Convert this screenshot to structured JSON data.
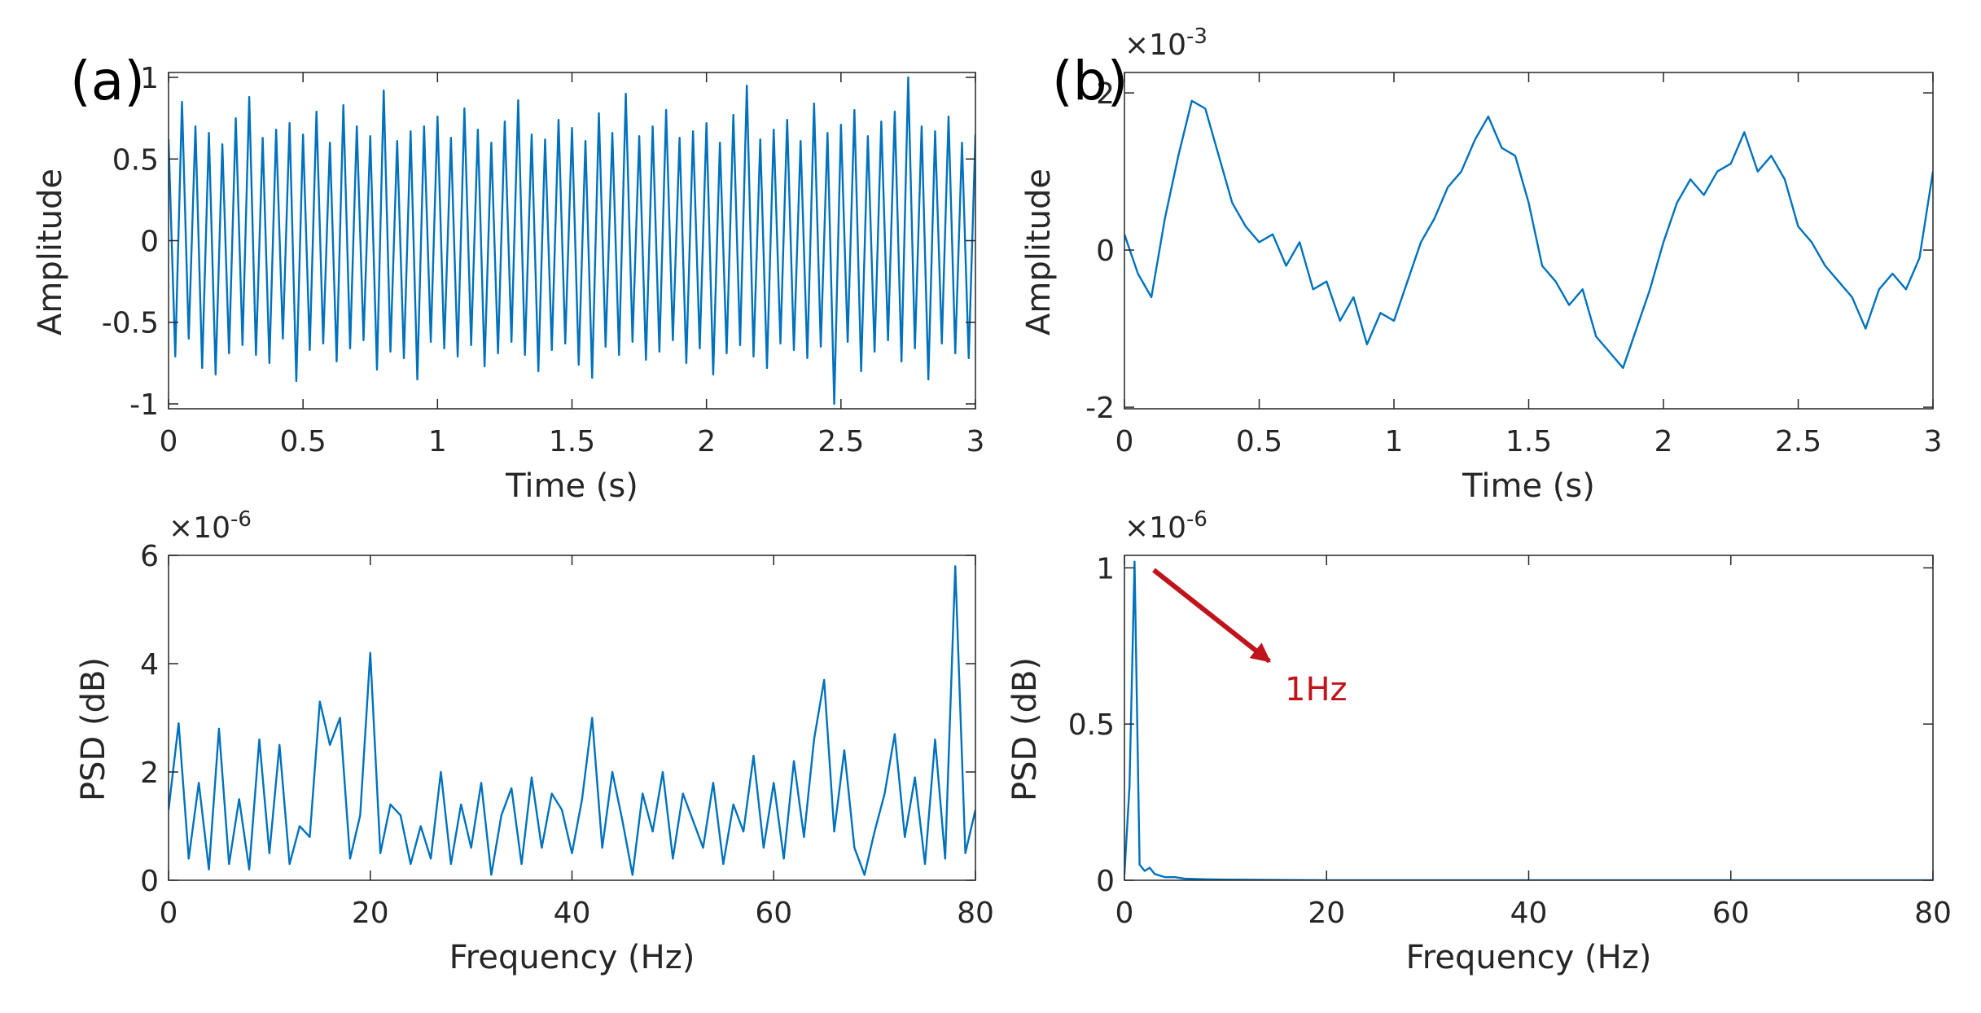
{
  "chart_data": [
    {
      "type": "line",
      "panel_label": "(a)",
      "xlabel": "Time (s)",
      "ylabel": "Amplitude",
      "xlim": [
        0,
        3
      ],
      "ylim": [
        -1.03,
        1.03
      ],
      "xticks": [
        0,
        0.5,
        1,
        1.5,
        2,
        2.5,
        3
      ],
      "yticks": [
        -1,
        -0.5,
        0,
        0.5,
        1
      ],
      "x": [
        0,
        0.025,
        0.05,
        0.075,
        0.1,
        0.125,
        0.15,
        0.175,
        0.2,
        0.225,
        0.25,
        0.275,
        0.3,
        0.325,
        0.35,
        0.375,
        0.4,
        0.425,
        0.45,
        0.475,
        0.5,
        0.525,
        0.55,
        0.575,
        0.6,
        0.625,
        0.65,
        0.675,
        0.7,
        0.725,
        0.75,
        0.775,
        0.8,
        0.825,
        0.85,
        0.875,
        0.9,
        0.925,
        0.95,
        0.975,
        1,
        1.025,
        1.05,
        1.075,
        1.1,
        1.125,
        1.15,
        1.175,
        1.2,
        1.225,
        1.25,
        1.275,
        1.3,
        1.325,
        1.35,
        1.375,
        1.4,
        1.425,
        1.45,
        1.475,
        1.5,
        1.525,
        1.55,
        1.575,
        1.6,
        1.625,
        1.65,
        1.675,
        1.7,
        1.725,
        1.75,
        1.775,
        1.8,
        1.825,
        1.85,
        1.875,
        1.9,
        1.925,
        1.95,
        1.975,
        2,
        2.025,
        2.05,
        2.075,
        2.1,
        2.125,
        2.15,
        2.175,
        2.2,
        2.225,
        2.25,
        2.275,
        2.3,
        2.325,
        2.35,
        2.375,
        2.4,
        2.425,
        2.45,
        2.475,
        2.5,
        2.525,
        2.55,
        2.575,
        2.6,
        2.625,
        2.65,
        2.675,
        2.7,
        2.725,
        2.75,
        2.775,
        2.8,
        2.825,
        2.85,
        2.875,
        2.9,
        2.925,
        2.95,
        2.975,
        3
      ],
      "series": [
        {
          "color": "#0072bd",
          "values": [
            0.62,
            -0.71,
            0.85,
            -0.6,
            0.7,
            -0.78,
            0.66,
            -0.82,
            0.59,
            -0.69,
            0.75,
            -0.64,
            0.88,
            -0.7,
            0.63,
            -0.75,
            0.68,
            -0.6,
            0.72,
            -0.86,
            0.65,
            -0.67,
            0.79,
            -0.63,
            0.6,
            -0.74,
            0.83,
            -0.66,
            0.7,
            -0.61,
            0.64,
            -0.79,
            0.92,
            -0.68,
            0.61,
            -0.72,
            0.67,
            -0.85,
            0.7,
            -0.62,
            0.76,
            -0.66,
            0.63,
            -0.71,
            0.81,
            -0.64,
            0.68,
            -0.77,
            0.6,
            -0.69,
            0.73,
            -0.62,
            0.86,
            -0.7,
            0.65,
            -0.8,
            0.62,
            -0.67,
            0.74,
            -0.63,
            0.69,
            -0.76,
            0.61,
            -0.84,
            0.78,
            -0.65,
            0.66,
            -0.7,
            0.9,
            -0.62,
            0.64,
            -0.73,
            0.7,
            -0.68,
            0.8,
            -0.61,
            0.63,
            -0.75,
            0.67,
            -0.66,
            0.72,
            -0.82,
            0.6,
            -0.69,
            0.77,
            -0.64,
            0.95,
            -0.71,
            0.62,
            -0.78,
            0.68,
            -0.63,
            0.74,
            -0.67,
            0.61,
            -0.72,
            0.84,
            -0.65,
            0.66,
            -1.0,
            0.71,
            -0.62,
            0.8,
            -0.8,
            0.64,
            -0.68,
            0.73,
            -0.61,
            0.79,
            -0.74,
            1.0,
            -0.66,
            0.7,
            -0.85,
            0.67,
            -0.63,
            0.76,
            -0.69,
            0.6,
            -0.72,
            0.65
          ]
        }
      ]
    },
    {
      "type": "line",
      "panel_label": "(b)",
      "xlabel": "Time (s)",
      "ylabel": "Amplitude",
      "exponent": {
        "base": "×10",
        "power": "-3"
      },
      "xlim": [
        0,
        3
      ],
      "ylim": [
        -2.02,
        2.26
      ],
      "xticks": [
        0,
        0.5,
        1,
        1.5,
        2,
        2.5,
        3
      ],
      "yticks": [
        -2,
        0,
        2
      ],
      "x": [
        0,
        0.05,
        0.1,
        0.15,
        0.2,
        0.25,
        0.3,
        0.35,
        0.4,
        0.45,
        0.5,
        0.55,
        0.6,
        0.65,
        0.7,
        0.75,
        0.8,
        0.85,
        0.9,
        0.95,
        1,
        1.05,
        1.1,
        1.15,
        1.2,
        1.25,
        1.3,
        1.35,
        1.4,
        1.45,
        1.5,
        1.55,
        1.6,
        1.65,
        1.7,
        1.75,
        1.8,
        1.85,
        1.9,
        1.95,
        2,
        2.05,
        2.1,
        2.15,
        2.2,
        2.25,
        2.3,
        2.35,
        2.4,
        2.45,
        2.5,
        2.55,
        2.6,
        2.65,
        2.7,
        2.75,
        2.8,
        2.85,
        2.9,
        2.95,
        3
      ],
      "series": [
        {
          "color": "#0072bd",
          "values": [
            0.2,
            -0.3,
            -0.6,
            0.4,
            1.2,
            1.9,
            1.8,
            1.2,
            0.6,
            0.3,
            0.1,
            0.2,
            -0.2,
            0.1,
            -0.5,
            -0.4,
            -0.9,
            -0.6,
            -1.2,
            -0.8,
            -0.9,
            -0.4,
            0.1,
            0.4,
            0.8,
            1.0,
            1.4,
            1.7,
            1.3,
            1.2,
            0.6,
            -0.2,
            -0.4,
            -0.7,
            -0.5,
            -1.1,
            -1.3,
            -1.5,
            -1.0,
            -0.5,
            0.1,
            0.6,
            0.9,
            0.7,
            1.0,
            1.1,
            1.5,
            1.0,
            1.2,
            0.9,
            0.3,
            0.1,
            -0.2,
            -0.4,
            -0.6,
            -1.0,
            -0.5,
            -0.3,
            -0.5,
            -0.1,
            1.0
          ]
        }
      ]
    },
    {
      "type": "line",
      "xlabel": "Frequency (Hz)",
      "ylabel": "PSD (dB)",
      "exponent": {
        "base": "×10",
        "power": "-6"
      },
      "xlim": [
        0,
        80
      ],
      "ylim": [
        0,
        6
      ],
      "xticks": [
        0,
        20,
        40,
        60,
        80
      ],
      "yticks": [
        0,
        2,
        4,
        6
      ],
      "x": [
        0,
        1,
        2,
        3,
        4,
        5,
        6,
        7,
        8,
        9,
        10,
        11,
        12,
        13,
        14,
        15,
        16,
        17,
        18,
        19,
        20,
        21,
        22,
        23,
        24,
        25,
        26,
        27,
        28,
        29,
        30,
        31,
        32,
        33,
        34,
        35,
        36,
        37,
        38,
        39,
        40,
        41,
        42,
        43,
        44,
        45,
        46,
        47,
        48,
        49,
        50,
        51,
        52,
        53,
        54,
        55,
        56,
        57,
        58,
        59,
        60,
        61,
        62,
        63,
        64,
        65,
        66,
        67,
        68,
        69,
        70,
        71,
        72,
        73,
        74,
        75,
        76,
        77,
        78,
        79,
        80
      ],
      "series": [
        {
          "color": "#0072bd",
          "values": [
            1.3,
            2.9,
            0.4,
            1.8,
            0.2,
            2.8,
            0.3,
            1.5,
            0.2,
            2.6,
            0.5,
            2.5,
            0.3,
            1.0,
            0.8,
            3.3,
            2.5,
            3.0,
            0.4,
            1.2,
            4.2,
            0.5,
            1.4,
            1.2,
            0.3,
            1.0,
            0.4,
            2.0,
            0.3,
            1.4,
            0.6,
            1.8,
            0.1,
            1.2,
            1.7,
            0.3,
            1.9,
            0.6,
            1.6,
            1.3,
            0.5,
            1.5,
            3.0,
            0.6,
            2.0,
            1.1,
            0.1,
            1.6,
            0.9,
            2.0,
            0.4,
            1.6,
            1.1,
            0.6,
            1.8,
            0.3,
            1.4,
            0.9,
            2.3,
            0.6,
            1.8,
            0.4,
            2.2,
            0.8,
            2.6,
            3.7,
            0.9,
            2.4,
            0.6,
            0.1,
            0.9,
            1.6,
            2.7,
            0.8,
            1.9,
            0.3,
            2.6,
            0.4,
            5.8,
            0.5,
            1.3
          ]
        }
      ]
    },
    {
      "type": "line",
      "xlabel": "Frequency (Hz)",
      "ylabel": "PSD (dB)",
      "exponent": {
        "base": "×10",
        "power": "-6"
      },
      "annotation": {
        "text": "1Hz",
        "color": "#c0141c"
      },
      "xlim": [
        0,
        80
      ],
      "ylim": [
        0,
        1.04
      ],
      "xticks": [
        0,
        20,
        40,
        60,
        80
      ],
      "yticks": [
        0,
        0.5,
        1
      ],
      "x": [
        0,
        0.5,
        1,
        1.5,
        2,
        2.5,
        3,
        4,
        5,
        6,
        8,
        10,
        15,
        20,
        30,
        40,
        50,
        60,
        70,
        80
      ],
      "series": [
        {
          "color": "#0072bd",
          "values": [
            0.02,
            0.3,
            1.02,
            0.05,
            0.03,
            0.04,
            0.02,
            0.01,
            0.01,
            0.005,
            0.003,
            0.002,
            0.001,
            0,
            0,
            0,
            0,
            0,
            0,
            0
          ]
        }
      ]
    }
  ]
}
